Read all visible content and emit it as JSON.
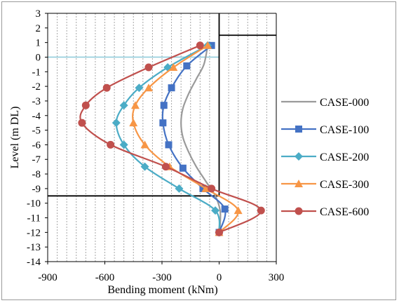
{
  "chart_data": {
    "type": "line",
    "title": "",
    "xlabel": "Bending moment (kNm)",
    "ylabel": "Level (m DL)",
    "xlim": [
      -900,
      300
    ],
    "ylim": [
      -14,
      3
    ],
    "xticks": [
      -900,
      -600,
      -300,
      0,
      300
    ],
    "yticks": [
      3,
      2,
      1,
      0,
      -1,
      -2,
      -3,
      -4,
      -5,
      -6,
      -7,
      -8,
      -9,
      -10,
      -11,
      -12,
      -13,
      -14
    ],
    "grid": "vertical dashed",
    "legend_position": "right",
    "series": [
      {
        "name": "CASE-000",
        "color": "#9a9a9a",
        "marker": "none",
        "points": [
          [
            -60,
            0.8
          ],
          [
            -80,
            -0.5
          ],
          [
            -120,
            -1.5
          ],
          [
            -160,
            -2.5
          ],
          [
            -190,
            -3.5
          ],
          [
            -200,
            -4.5
          ],
          [
            -190,
            -5.5
          ],
          [
            -160,
            -6.5
          ],
          [
            -120,
            -7.5
          ],
          [
            -70,
            -8.5
          ],
          [
            -20,
            -9.5
          ],
          [
            5,
            -10.5
          ],
          [
            5,
            -11.5
          ],
          [
            0,
            -12
          ]
        ]
      },
      {
        "name": "CASE-100",
        "color": "#4472c4",
        "marker": "square",
        "points": [
          [
            -40,
            0.8
          ],
          [
            -170,
            -0.6
          ],
          [
            -250,
            -2.1
          ],
          [
            -290,
            -3.3
          ],
          [
            -295,
            -4.5
          ],
          [
            -265,
            -6.0
          ],
          [
            -190,
            -7.6
          ],
          [
            -85,
            -9.0
          ],
          [
            30,
            -10.4
          ],
          [
            0,
            -12
          ]
        ]
      },
      {
        "name": "CASE-200",
        "color": "#4bacc6",
        "marker": "diamond",
        "points": [
          [
            -60,
            0.8
          ],
          [
            -270,
            -0.7
          ],
          [
            -420,
            -2.1
          ],
          [
            -500,
            -3.3
          ],
          [
            -540,
            -4.5
          ],
          [
            -500,
            -6.0
          ],
          [
            -390,
            -7.5
          ],
          [
            -210,
            -9.0
          ],
          [
            -20,
            -10.5
          ],
          [
            0,
            -12
          ]
        ]
      },
      {
        "name": "CASE-300",
        "color": "#f79646",
        "marker": "triangle",
        "points": [
          [
            -60,
            0.8
          ],
          [
            -240,
            -0.7
          ],
          [
            -370,
            -2.1
          ],
          [
            -440,
            -3.3
          ],
          [
            -450,
            -4.5
          ],
          [
            -390,
            -6.0
          ],
          [
            -260,
            -7.5
          ],
          [
            -70,
            -9.0
          ],
          [
            100,
            -10.5
          ],
          [
            0,
            -12
          ]
        ]
      },
      {
        "name": "CASE-600",
        "color": "#c0504d",
        "marker": "circle",
        "points": [
          [
            -100,
            0.8
          ],
          [
            -370,
            -0.7
          ],
          [
            -590,
            -2.1
          ],
          [
            -700,
            -3.3
          ],
          [
            -720,
            -4.5
          ],
          [
            -570,
            -6.0
          ],
          [
            -280,
            -7.5
          ],
          [
            -40,
            -9.0
          ],
          [
            220,
            -10.5
          ],
          [
            0,
            -12
          ]
        ]
      }
    ]
  }
}
